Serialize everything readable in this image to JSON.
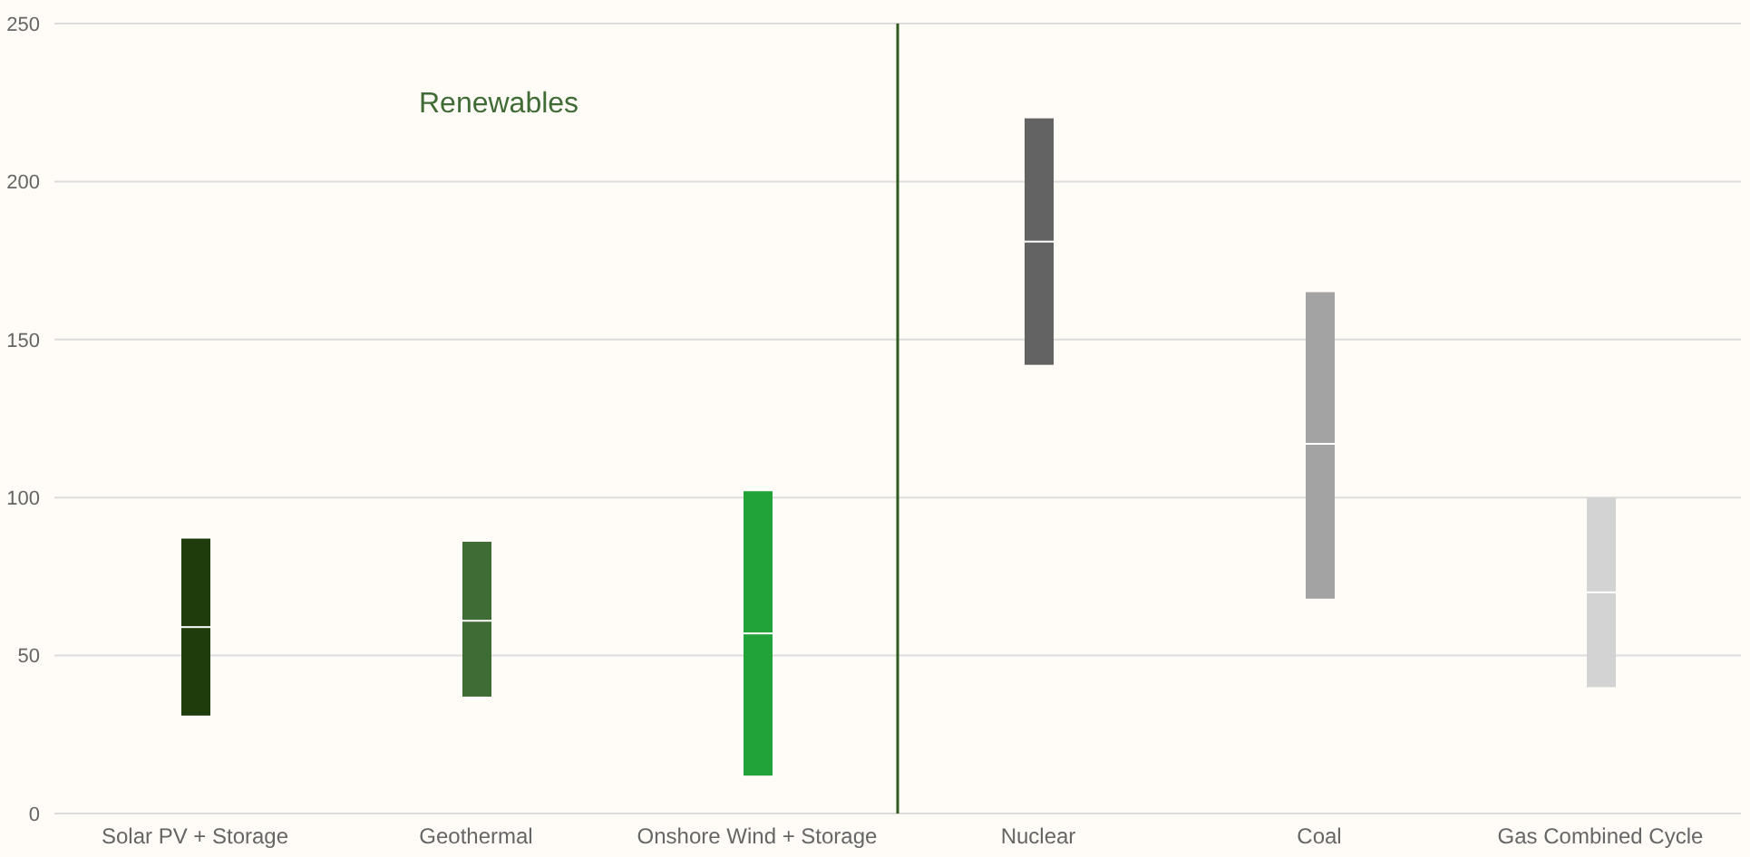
{
  "chart_data": {
    "type": "box",
    "categories": [
      "Solar PV + Storage",
      "Geothermal",
      "Onshore Wind + Storage",
      "Nuclear",
      "Coal",
      "Gas Combined Cycle"
    ],
    "boxes": [
      {
        "q1": 31,
        "median": 59,
        "q3": 87
      },
      {
        "q1": 37,
        "median": 61,
        "q3": 86
      },
      {
        "q1": 12,
        "median": 57,
        "q3": 102
      },
      {
        "q1": 142,
        "median": 181,
        "q3": 220
      },
      {
        "q1": 68,
        "median": 117,
        "q3": 165
      },
      {
        "q1": 40,
        "median": 70,
        "q3": 100
      }
    ],
    "colors": [
      "#1f3d0c",
      "#3f6b35",
      "#22a33a",
      "#636363",
      "#a3a3a3",
      "#d3d3d3"
    ],
    "ylim": [
      0,
      250
    ],
    "yticks": [
      0,
      50,
      100,
      150,
      200,
      250
    ],
    "grid": "y",
    "ref_lines": [
      {
        "axis": "x",
        "value": "Nuclear",
        "color": "#2f5a1f"
      }
    ],
    "annotations": [
      "Renewables"
    ]
  }
}
